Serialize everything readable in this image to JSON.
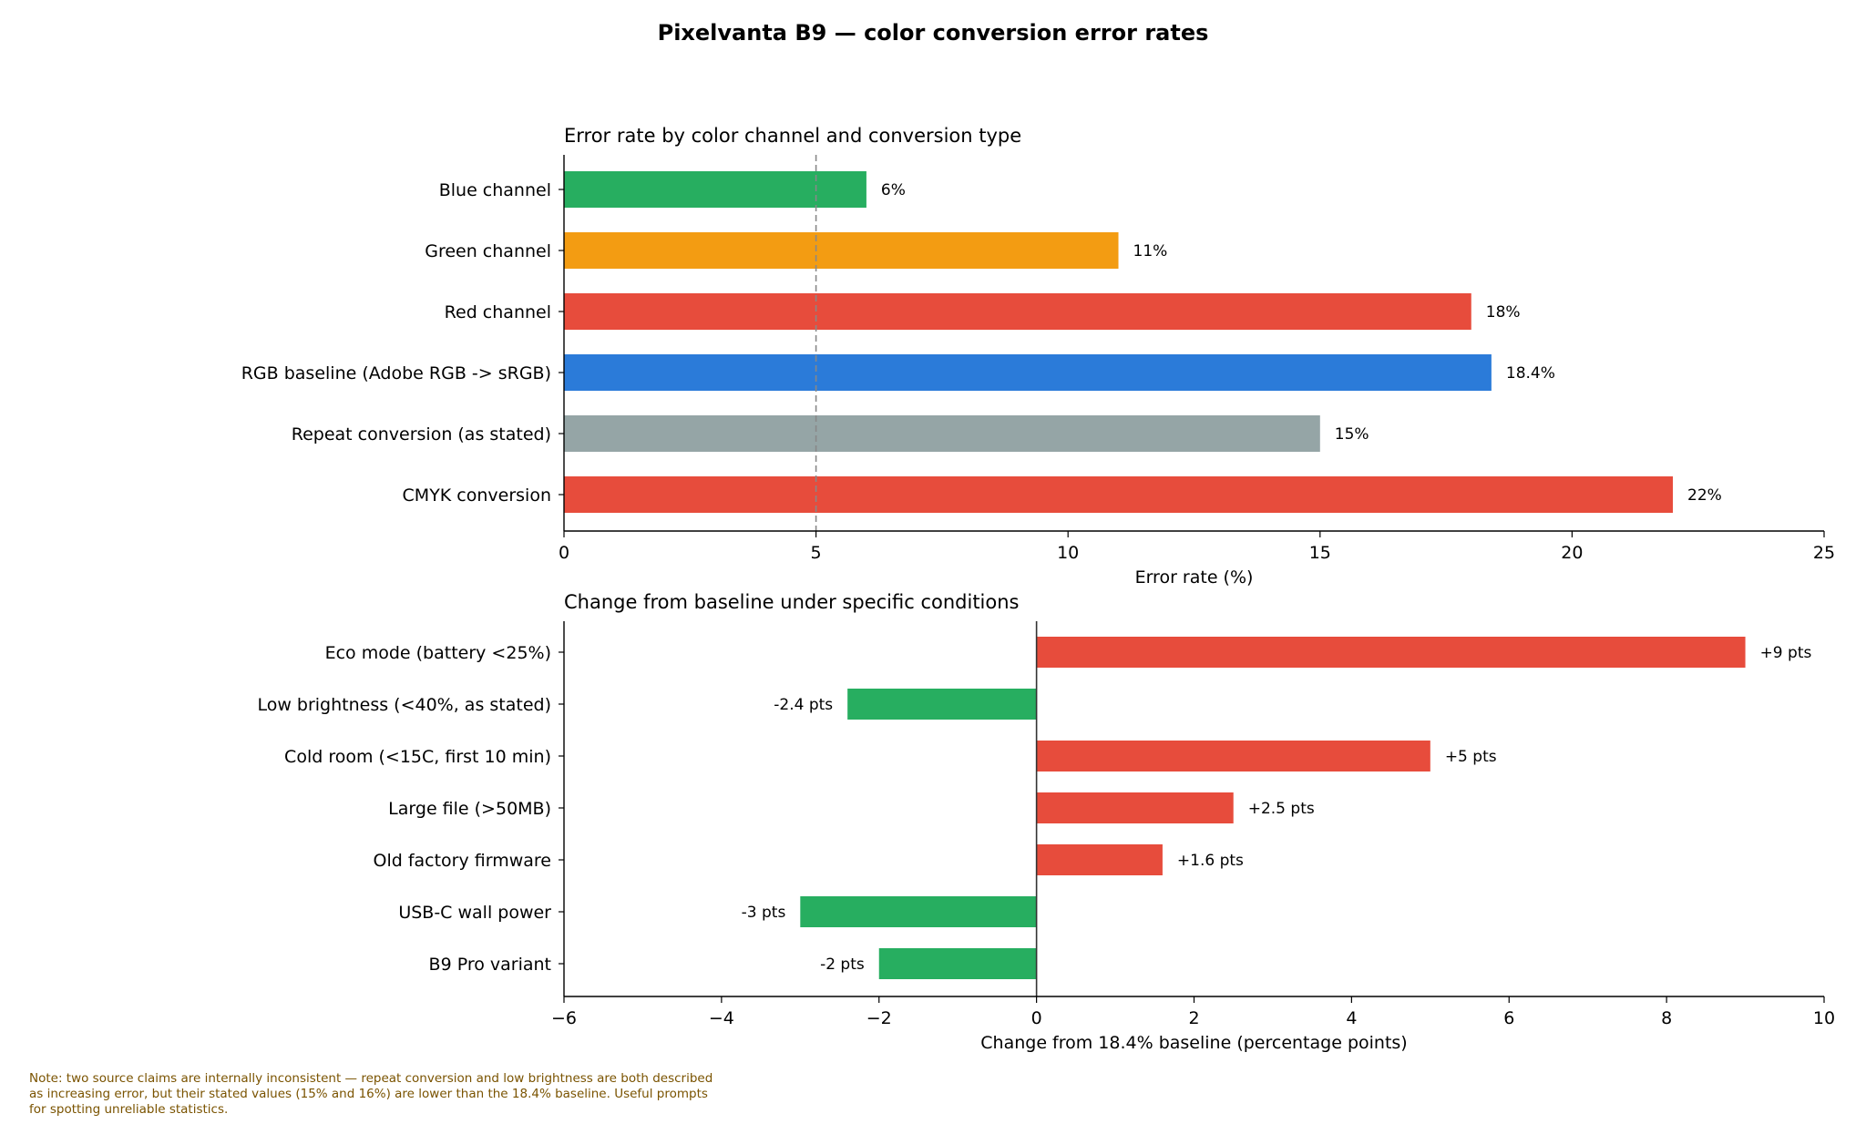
{
  "figure_title": "Pixelvanta B9 — color conversion error rates",
  "note": "Note: two source claims are internally inconsistent — repeat conversion and low brightness are both described as increasing error, but their stated values (15% and 16%) are lower than the 18.4% baseline. Useful prompts for spotting unreliable statistics.",
  "chart_data": [
    {
      "type": "bar",
      "orientation": "horizontal",
      "title": "Error rate by color channel and conversion type",
      "xlabel": "Error rate (%)",
      "ylabel": "",
      "xlim": [
        0,
        25
      ],
      "xticks": [
        0,
        5,
        10,
        15,
        20,
        25
      ],
      "reference_line": {
        "x": 5,
        "style": "dashed",
        "color": "#888888"
      },
      "categories": [
        "Blue channel",
        "Green channel",
        "Red channel",
        "RGB baseline (Adobe RGB -> sRGB)",
        "Repeat conversion (as stated)",
        "CMYK conversion"
      ],
      "values": [
        6,
        11,
        18,
        18.4,
        15,
        22
      ],
      "labels": [
        "6%",
        "11%",
        "18%",
        "18.4%",
        "15%",
        "22%"
      ],
      "colors": [
        "#27ae60",
        "#f39c12",
        "#e74c3c",
        "#2b7bd9",
        "#95a5a6",
        "#e74c3c"
      ],
      "grid": false
    },
    {
      "type": "bar",
      "orientation": "horizontal",
      "title": "Change from baseline under specific conditions",
      "xlabel": "Change from 18.4% baseline (percentage points)",
      "ylabel": "",
      "xlim": [
        -6,
        10
      ],
      "xticks": [
        -6,
        -4,
        -2,
        0,
        2,
        4,
        6,
        8,
        10
      ],
      "xtick_labels": [
        "−6",
        "−4",
        "−2",
        "0",
        "2",
        "4",
        "6",
        "8",
        "10"
      ],
      "zero_line": true,
      "categories": [
        "Eco mode (battery <25%)",
        "Low brightness (<40%, as stated)",
        "Cold room (<15C, first 10 min)",
        "Large file (>50MB)",
        "Old factory firmware",
        "USB-C wall power",
        "B9 Pro variant"
      ],
      "values": [
        9,
        -2.4,
        5,
        2.5,
        1.6,
        -3,
        -2
      ],
      "labels": [
        "+9 pts",
        "-2.4 pts",
        "+5 pts",
        "+2.5 pts",
        "+1.6 pts",
        "-3 pts",
        "-2 pts"
      ],
      "colors": {
        "positive": "#e74c3c",
        "negative": "#27ae60"
      },
      "grid": false
    }
  ]
}
